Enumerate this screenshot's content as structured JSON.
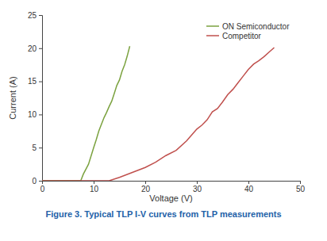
{
  "chart_data": {
    "type": "line",
    "title": "Figure 3. Typical TLP I-V curves from TLP measurements",
    "x_label": "Voltage (V)",
    "y_label": "Current (A)",
    "xlim": [
      0,
      50
    ],
    "xticks": [
      0,
      10,
      20,
      30,
      40,
      50
    ],
    "ylim": [
      0,
      25
    ],
    "yticks": [
      0,
      5,
      10,
      15,
      20,
      25
    ],
    "grid": false,
    "legend": "top-right",
    "series": [
      {
        "name": "ON Semiconductor",
        "color": "#7ba23f",
        "x": [
          0,
          7.5,
          8,
          9,
          10,
          10.5,
          11,
          12,
          12.5,
          13,
          13.5,
          14,
          14.5,
          15,
          15.5,
          16,
          16.5,
          17
        ],
        "values": [
          0,
          0,
          1,
          2.5,
          5,
          6.2,
          7.5,
          9.5,
          10.3,
          11.2,
          12,
          13.2,
          14.4,
          15.2,
          16.5,
          17.5,
          18.8,
          20.3
        ]
      },
      {
        "name": "Competitor",
        "color": "#c0504d",
        "x": [
          0,
          13,
          15,
          18,
          20,
          22,
          24,
          26,
          28,
          29,
          30,
          31,
          32,
          33,
          34,
          35,
          36,
          37,
          38,
          39,
          40,
          41,
          42,
          43,
          44,
          45
        ],
        "values": [
          0,
          0,
          0.5,
          1.4,
          2,
          2.8,
          3.8,
          4.6,
          6,
          6.9,
          7.8,
          8.4,
          9.2,
          10.4,
          10.9,
          11.9,
          13,
          13.8,
          14.8,
          15.8,
          16.8,
          17.6,
          18.1,
          18.7,
          19.4,
          20.1
        ]
      }
    ]
  }
}
